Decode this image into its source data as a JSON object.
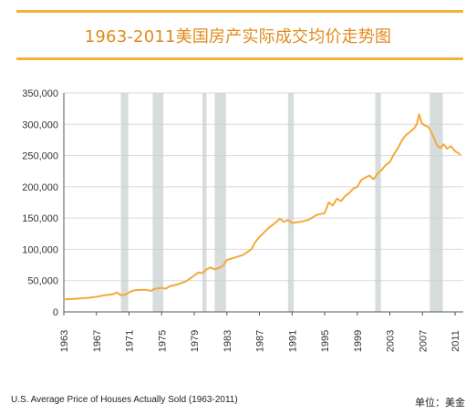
{
  "title": "1963-2011美国房产实际成交均价走势图",
  "footer": {
    "source": "U.S. Average Price of Houses Actually Sold (1963-2011)",
    "unit": "单位：美金"
  },
  "colors": {
    "accent": "#f2b33a",
    "line": "#f5a93a",
    "recession": "#c9d2d2",
    "grid": "#d9d9d9"
  },
  "chart_data": {
    "type": "line",
    "title": "1963-2011美国房产实际成交均价走势图",
    "xlabel": "",
    "ylabel": "",
    "xlim": [
      1963,
      2012
    ],
    "ylim": [
      0,
      350000
    ],
    "grid": true,
    "yticks": [
      0,
      50000,
      100000,
      150000,
      200000,
      250000,
      300000,
      350000
    ],
    "ytick_labels": [
      "0",
      "50,000",
      "100,000",
      "150,000",
      "200,000",
      "250,000",
      "300,000",
      "350,000"
    ],
    "xticks": [
      1963,
      1967,
      1971,
      1975,
      1979,
      1983,
      1987,
      1991,
      1995,
      1999,
      2003,
      2007,
      2011
    ],
    "xtick_labels": [
      "1963",
      "1967",
      "1971",
      "1975",
      "1979",
      "1983",
      "1987",
      "1991",
      "1995",
      "1999",
      "2003",
      "2007",
      "2011"
    ],
    "recessions": [
      [
        1970.0,
        1970.9
      ],
      [
        1973.9,
        1975.2
      ],
      [
        1980.0,
        1980.5
      ],
      [
        1981.5,
        1982.9
      ],
      [
        1990.5,
        1991.2
      ],
      [
        2001.2,
        2001.9
      ],
      [
        2007.9,
        2009.5
      ]
    ],
    "series": [
      {
        "values": [
          [
            1963.0,
            20000
          ],
          [
            1964.0,
            20500
          ],
          [
            1965.0,
            21500
          ],
          [
            1966.0,
            22500
          ],
          [
            1967.0,
            24000
          ],
          [
            1968.0,
            26500
          ],
          [
            1969.0,
            28000
          ],
          [
            1969.5,
            31000
          ],
          [
            1970.0,
            26500
          ],
          [
            1970.5,
            27500
          ],
          [
            1971.0,
            31000
          ],
          [
            1971.5,
            34000
          ],
          [
            1972.0,
            35000
          ],
          [
            1973.0,
            35500
          ],
          [
            1973.8,
            33500
          ],
          [
            1974.0,
            36500
          ],
          [
            1975.0,
            38500
          ],
          [
            1975.5,
            37000
          ],
          [
            1976.0,
            41000
          ],
          [
            1977.0,
            44000
          ],
          [
            1978.0,
            49000
          ],
          [
            1979.0,
            58000
          ],
          [
            1979.5,
            63000
          ],
          [
            1980.0,
            62000
          ],
          [
            1980.5,
            68000
          ],
          [
            1981.0,
            71000
          ],
          [
            1981.5,
            68000
          ],
          [
            1982.0,
            70000
          ],
          [
            1982.5,
            73000
          ],
          [
            1983.0,
            83000
          ],
          [
            1984.0,
            87000
          ],
          [
            1985.0,
            91000
          ],
          [
            1986.0,
            100000
          ],
          [
            1986.5,
            112000
          ],
          [
            1987.0,
            120000
          ],
          [
            1987.5,
            126000
          ],
          [
            1988.0,
            133000
          ],
          [
            1989.0,
            143000
          ],
          [
            1989.5,
            149000
          ],
          [
            1990.0,
            144000
          ],
          [
            1990.5,
            147000
          ],
          [
            1991.0,
            142000
          ],
          [
            1992.0,
            144000
          ],
          [
            1993.0,
            147000
          ],
          [
            1994.0,
            155000
          ],
          [
            1995.0,
            158000
          ],
          [
            1995.5,
            175000
          ],
          [
            1996.0,
            170000
          ],
          [
            1996.5,
            181000
          ],
          [
            1997.0,
            177000
          ],
          [
            1997.5,
            185000
          ],
          [
            1998.0,
            190000
          ],
          [
            1998.5,
            197000
          ],
          [
            1999.0,
            200000
          ],
          [
            1999.5,
            211000
          ],
          [
            2000.0,
            215000
          ],
          [
            2000.5,
            218000
          ],
          [
            2001.0,
            212000
          ],
          [
            2001.5,
            221000
          ],
          [
            2002.0,
            227000
          ],
          [
            2002.5,
            235000
          ],
          [
            2003.0,
            240000
          ],
          [
            2003.5,
            252000
          ],
          [
            2004.0,
            262000
          ],
          [
            2004.5,
            275000
          ],
          [
            2005.0,
            283000
          ],
          [
            2005.5,
            288000
          ],
          [
            2006.0,
            294000
          ],
          [
            2006.3,
            300000
          ],
          [
            2006.6,
            316000
          ],
          [
            2006.9,
            302000
          ],
          [
            2007.3,
            298000
          ],
          [
            2007.7,
            296000
          ],
          [
            2008.0,
            290000
          ],
          [
            2008.4,
            278000
          ],
          [
            2008.8,
            266000
          ],
          [
            2009.2,
            262000
          ],
          [
            2009.6,
            268000
          ],
          [
            2010.0,
            261000
          ],
          [
            2010.5,
            265000
          ],
          [
            2011.0,
            257000
          ],
          [
            2011.6,
            252000
          ]
        ]
      }
    ]
  }
}
